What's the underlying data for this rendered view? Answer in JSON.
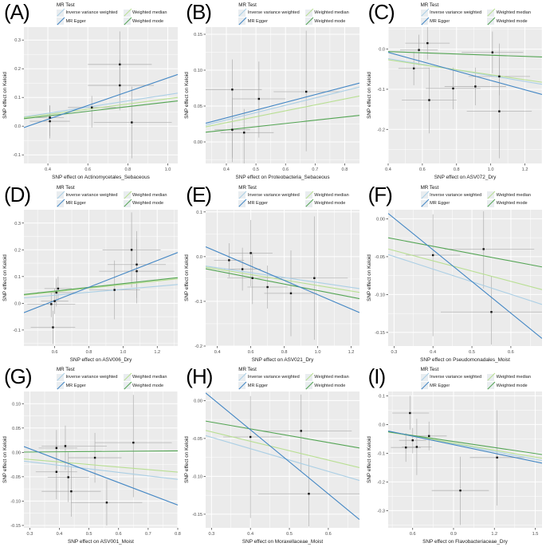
{
  "figure": {
    "type": "mr-scatter-grid",
    "rows": 3,
    "cols": 3
  },
  "legend": {
    "title": "MR Test",
    "entries": [
      {
        "id": "ivw",
        "label": "Inverse variance weighted"
      },
      {
        "id": "wmedian",
        "label": "Weighted median"
      },
      {
        "id": "egger",
        "label": "MR Egger"
      },
      {
        "id": "wmode",
        "label": "Weighted mode"
      }
    ]
  },
  "colors": {
    "ivw": "#abcfe5",
    "egger": "#4286c4",
    "wmedian": "#b8df92",
    "wmode": "#53a453",
    "panel_bg": "#ebebeb",
    "grid": "#ffffff",
    "point": "#121212",
    "errorbar": "#a9a9a9",
    "tick_text": "#4d4d4d",
    "axis_text": "#1a1a1a"
  },
  "line_draw_order": [
    "ivw",
    "wmedian",
    "wmode",
    "egger"
  ],
  "chart_data": [
    {
      "type": "scatter",
      "panel": "(A)",
      "xlabel": "SNP effect on Actinomycetales_Sebaceous",
      "ylabel": "SNP effect on Keloid",
      "xlim": [
        0.28,
        1.05
      ],
      "ylim": [
        -0.13,
        0.345
      ],
      "xticks": [
        0.4,
        0.6,
        0.8,
        1.0
      ],
      "yticks": [
        -0.1,
        0.0,
        0.1,
        0.2,
        0.3
      ],
      "xdp": 1,
      "ydp": 1,
      "points": [
        [
          0.41,
          0.03,
          0.34,
          0.48,
          -0.034,
          0.072
        ],
        [
          0.41,
          0.017,
          0.31,
          0.51,
          -0.043,
          0.072
        ],
        [
          0.62,
          0.065,
          0.5,
          0.74,
          -0.005,
          0.105
        ],
        [
          0.76,
          0.215,
          0.6,
          0.92,
          0.1,
          0.33
        ],
        [
          0.76,
          0.142,
          0.6,
          0.93,
          0.055,
          0.23
        ],
        [
          0.82,
          0.013,
          0.63,
          1.02,
          -0.112,
          0.138
        ]
      ],
      "lines": {
        "egger": [
          -0.0723,
          0.2403
        ],
        "ivw": [
          0.0018,
          0.1078
        ],
        "wmedian": [
          0.0045,
          0.0909
        ],
        "wmode": [
          0.0035,
          0.0805
        ]
      }
    },
    {
      "type": "scatter",
      "panel": "(B)",
      "xlabel": "SNP effect on Proteobacteria_Sebaceous",
      "ylabel": "SNP effect on Keloid",
      "xlim": [
        0.33,
        0.85
      ],
      "ylim": [
        -0.03,
        0.16
      ],
      "xticks": [
        0.4,
        0.5,
        0.6,
        0.7,
        0.8
      ],
      "yticks": [
        0.0,
        0.05,
        0.1,
        0.15
      ],
      "xdp": 1,
      "ydp": 2,
      "points": [
        [
          0.42,
          0.073,
          0.32,
          0.52,
          -0.022,
          0.115
        ],
        [
          0.42,
          0.017,
          0.36,
          0.48,
          -0.028,
          0.062
        ],
        [
          0.46,
          0.013,
          0.38,
          0.56,
          -0.03,
          0.046
        ],
        [
          0.51,
          0.06,
          0.42,
          0.6,
          0.006,
          0.112
        ],
        [
          0.67,
          0.07,
          0.56,
          0.79,
          -0.013,
          0.155
        ]
      ],
      "lines": {
        "egger": [
          -0.0095,
          0.1077
        ],
        "ivw": [
          -0.0101,
          0.1019
        ],
        "wmedian": [
          -0.0063,
          0.0827
        ],
        "wmode": [
          -0.0014,
          0.0452
        ]
      }
    },
    {
      "type": "scatter",
      "panel": "(C)",
      "xlabel": "SNP effect on ASV072_Dry",
      "ylabel": "SNP effect on Keloid",
      "xlim": [
        0.4,
        1.3
      ],
      "ylim": [
        -0.285,
        0.055
      ],
      "xticks": [
        0.4,
        0.6,
        0.8,
        1.0,
        1.2
      ],
      "yticks": [
        0.0,
        -0.1,
        -0.2
      ],
      "xdp": 1,
      "ydp": 1,
      "points": [
        [
          0.55,
          -0.048,
          0.46,
          0.64,
          -0.09,
          -0.006
        ],
        [
          0.58,
          -0.002,
          0.47,
          0.69,
          -0.04,
          0.036
        ],
        [
          0.63,
          0.015,
          0.5,
          0.76,
          -0.026,
          0.056
        ],
        [
          0.64,
          -0.127,
          0.48,
          0.8,
          -0.21,
          -0.046
        ],
        [
          0.78,
          -0.098,
          0.62,
          0.94,
          -0.15,
          -0.046
        ],
        [
          0.91,
          -0.093,
          0.73,
          1.09,
          -0.14,
          -0.046
        ],
        [
          1.01,
          -0.008,
          0.83,
          1.19,
          -0.06,
          0.044
        ],
        [
          1.05,
          -0.068,
          0.87,
          1.23,
          -0.115,
          -0.022
        ],
        [
          1.05,
          -0.155,
          0.86,
          1.24,
          -0.272,
          0.014
        ]
      ],
      "lines": {
        "egger": [
          0.0387,
          -0.1167
        ],
        "ivw": [
          0.0049,
          -0.0711
        ],
        "wmedian": [
          -0.0016,
          -0.0622
        ],
        "wmode": [
          0.0,
          -0.015
        ]
      }
    },
    {
      "type": "scatter",
      "panel": "(D)",
      "xlabel": "SNP effect on ASV006_Dry",
      "ylabel": "SNP effect on Keloid",
      "xlim": [
        0.42,
        1.32
      ],
      "ylim": [
        -0.16,
        0.35
      ],
      "xticks": [
        0.6,
        0.8,
        1.0,
        1.2
      ],
      "yticks": [
        -0.1,
        0.0,
        0.1,
        0.2,
        0.3
      ],
      "xdp": 1,
      "ydp": 1,
      "points": [
        [
          0.58,
          -0.003,
          0.44,
          0.72,
          -0.052,
          0.046
        ],
        [
          0.59,
          -0.09,
          0.46,
          0.72,
          -0.152,
          -0.028
        ],
        [
          0.6,
          0.008,
          0.52,
          0.68,
          -0.04,
          0.056
        ],
        [
          0.61,
          0.04,
          0.5,
          0.72,
          -0.012,
          0.092
        ],
        [
          0.62,
          0.055,
          0.54,
          0.7,
          0.01,
          0.1
        ],
        [
          0.95,
          0.05,
          0.8,
          1.1,
          -0.06,
          0.16
        ],
        [
          1.05,
          0.2,
          0.88,
          1.22,
          0.06,
          0.34
        ],
        [
          1.08,
          0.145,
          0.91,
          1.25,
          0.02,
          0.27
        ],
        [
          1.08,
          0.12,
          0.86,
          1.3,
          0.0,
          0.24
        ]
      ],
      "lines": {
        "egger": [
          -0.14,
          0.25
        ],
        "ivw": [
          -0.0033,
          0.0556
        ],
        "wmedian": [
          0.002,
          0.0678
        ],
        "wmode": [
          0.0036,
          0.07
        ]
      }
    },
    {
      "type": "scatter",
      "panel": "(E)",
      "xlabel": "SNP effect on ASV021_Dry",
      "ylabel": "SNP effect on Keloid",
      "xlim": [
        0.33,
        1.25
      ],
      "ylim": [
        -0.2,
        0.105
      ],
      "xticks": [
        0.4,
        0.6,
        0.8,
        1.0,
        1.2
      ],
      "yticks": [
        0.1,
        0.0,
        -0.1,
        -0.2
      ],
      "xdp": 1,
      "ydp": 1,
      "points": [
        [
          0.47,
          -0.008,
          0.38,
          0.56,
          -0.046,
          0.03
        ],
        [
          0.55,
          -0.028,
          0.44,
          0.66,
          -0.076,
          0.02
        ],
        [
          0.6,
          0.008,
          0.47,
          0.73,
          -0.066,
          0.082
        ],
        [
          0.61,
          -0.048,
          0.46,
          0.76,
          -0.106,
          0.01
        ],
        [
          0.7,
          -0.068,
          0.58,
          0.82,
          -0.116,
          -0.02
        ],
        [
          0.84,
          -0.082,
          0.68,
          1.0,
          -0.178,
          0.014
        ],
        [
          0.98,
          -0.048,
          0.78,
          1.18,
          -0.186,
          0.09
        ]
      ],
      "lines": {
        "egger": [
          0.0747,
          -0.1598
        ],
        "ivw": [
          -0.0029,
          -0.0549
        ],
        "wmedian": [
          -0.0032,
          -0.0614
        ],
        "wmode": [
          -0.003,
          -0.0728
        ]
      }
    },
    {
      "type": "scatter",
      "panel": "(F)",
      "xlabel": "SNP effect on Pseudomonadales_Moist",
      "ylabel": "SNP effect on Keloid",
      "xlim": [
        0.285,
        0.68
      ],
      "ylim": [
        -0.168,
        0.012
      ],
      "xticks": [
        0.3,
        0.4,
        0.5,
        0.6
      ],
      "yticks": [
        0.0,
        -0.05,
        -0.1,
        -0.15
      ],
      "xdp": 1,
      "ydp": 2,
      "points": [
        [
          0.4,
          -0.048,
          0.33,
          0.47,
          -0.155,
          0.006
        ],
        [
          0.53,
          -0.04,
          0.43,
          0.66,
          -0.092,
          0.01
        ],
        [
          0.55,
          -0.123,
          0.42,
          0.68,
          -0.166,
          -0.076
        ]
      ],
      "lines": {
        "egger": [
          0.1262,
          -0.4179
        ],
        "ivw": [
          0.0003,
          -0.1667
        ],
        "wmedian": [
          -0.0011,
          -0.1359
        ],
        "wmode": [
          0.0027,
          -0.0974
        ]
      }
    },
    {
      "type": "scatter",
      "panel": "(G)",
      "xlabel": "SNP effect on ASV001_Moist",
      "ylabel": "SNP effect on Keloid",
      "xlim": [
        0.28,
        0.8
      ],
      "ylim": [
        -0.155,
        0.125
      ],
      "xticks": [
        0.3,
        0.4,
        0.5,
        0.6,
        0.7,
        0.8
      ],
      "yticks": [
        0.1,
        0.05,
        0.0,
        -0.05,
        -0.1,
        -0.15
      ],
      "xdp": 1,
      "ydp": 2,
      "points": [
        [
          0.39,
          0.009,
          0.33,
          0.46,
          -0.032,
          0.046
        ],
        [
          0.39,
          -0.04,
          0.32,
          0.46,
          -0.096,
          0.016
        ],
        [
          0.42,
          0.013,
          0.34,
          0.56,
          -0.036,
          0.055
        ],
        [
          0.43,
          -0.051,
          0.36,
          0.5,
          -0.102,
          0.0
        ],
        [
          0.44,
          -0.08,
          0.34,
          0.54,
          -0.132,
          -0.028
        ],
        [
          0.52,
          -0.011,
          0.43,
          0.61,
          -0.062,
          0.04
        ],
        [
          0.56,
          -0.103,
          0.44,
          0.68,
          -0.15,
          -0.056
        ],
        [
          0.65,
          0.02,
          0.52,
          0.78,
          -0.092,
          0.118
        ]
      ],
      "lines": {
        "egger": [
          0.0766,
          -0.2308
        ],
        "ivw": [
          0.0022,
          -0.0721
        ],
        "wmedian": [
          0.001,
          -0.0519
        ],
        "wmode": [
          -0.0008,
          0.0048
        ]
      }
    },
    {
      "type": "scatter",
      "panel": "(H)",
      "xlabel": "SNP effect on Moraxellaceae_Moist",
      "ylabel": "SNP effect on Keloid",
      "xlim": [
        0.285,
        0.68
      ],
      "ylim": [
        -0.168,
        0.012
      ],
      "xticks": [
        0.3,
        0.4,
        0.5,
        0.6
      ],
      "yticks": [
        0.0,
        -0.05,
        -0.1,
        -0.15
      ],
      "xdp": 1,
      "ydp": 2,
      "points": [
        [
          0.4,
          -0.048,
          0.33,
          0.48,
          -0.155,
          0.006
        ],
        [
          0.53,
          -0.04,
          0.43,
          0.66,
          -0.094,
          0.008
        ],
        [
          0.55,
          -0.123,
          0.42,
          0.68,
          -0.166,
          -0.076
        ]
      ],
      "lines": {
        "egger": [
          0.1307,
          -0.4231
        ],
        "ivw": [
          -0.0035,
          -0.15
        ],
        "wmedian": [
          -0.0039,
          -0.1244
        ],
        "wmode": [
          -0.0015,
          -0.0897
        ]
      }
    },
    {
      "type": "scatter",
      "panel": "(I)",
      "xlabel": "SNP effect on Flavobacteriaceae_Dry",
      "ylabel": "SNP effect on Keloid",
      "xlim": [
        0.42,
        1.55
      ],
      "ylim": [
        -0.36,
        0.115
      ],
      "xticks": [
        0.6,
        0.9,
        1.2,
        1.5
      ],
      "yticks": [
        0.1,
        0.0,
        -0.1,
        -0.2,
        -0.3
      ],
      "xdp": 1,
      "ydp": 1,
      "points": [
        [
          0.58,
          0.04,
          0.45,
          0.72,
          -0.018,
          0.1
        ],
        [
          0.55,
          -0.08,
          0.44,
          0.66,
          -0.13,
          -0.03
        ],
        [
          0.6,
          -0.055,
          0.5,
          0.7,
          -0.1,
          -0.012
        ],
        [
          0.63,
          -0.078,
          0.52,
          0.74,
          -0.176,
          0.02
        ],
        [
          0.72,
          -0.04,
          0.6,
          0.85,
          -0.09,
          0.01
        ],
        [
          0.95,
          -0.23,
          0.74,
          1.16,
          -0.35,
          -0.112
        ],
        [
          1.22,
          -0.115,
          1.02,
          1.42,
          -0.282,
          0.05
        ]
      ],
      "lines": {
        "egger": [
          0.0191,
          -0.0991
        ],
        "ivw": [
          0.0144,
          -0.0903
        ],
        "wmedian": [
          0.008,
          -0.081
        ],
        "wmode": [
          0.0039,
          -0.0699
        ]
      }
    }
  ]
}
